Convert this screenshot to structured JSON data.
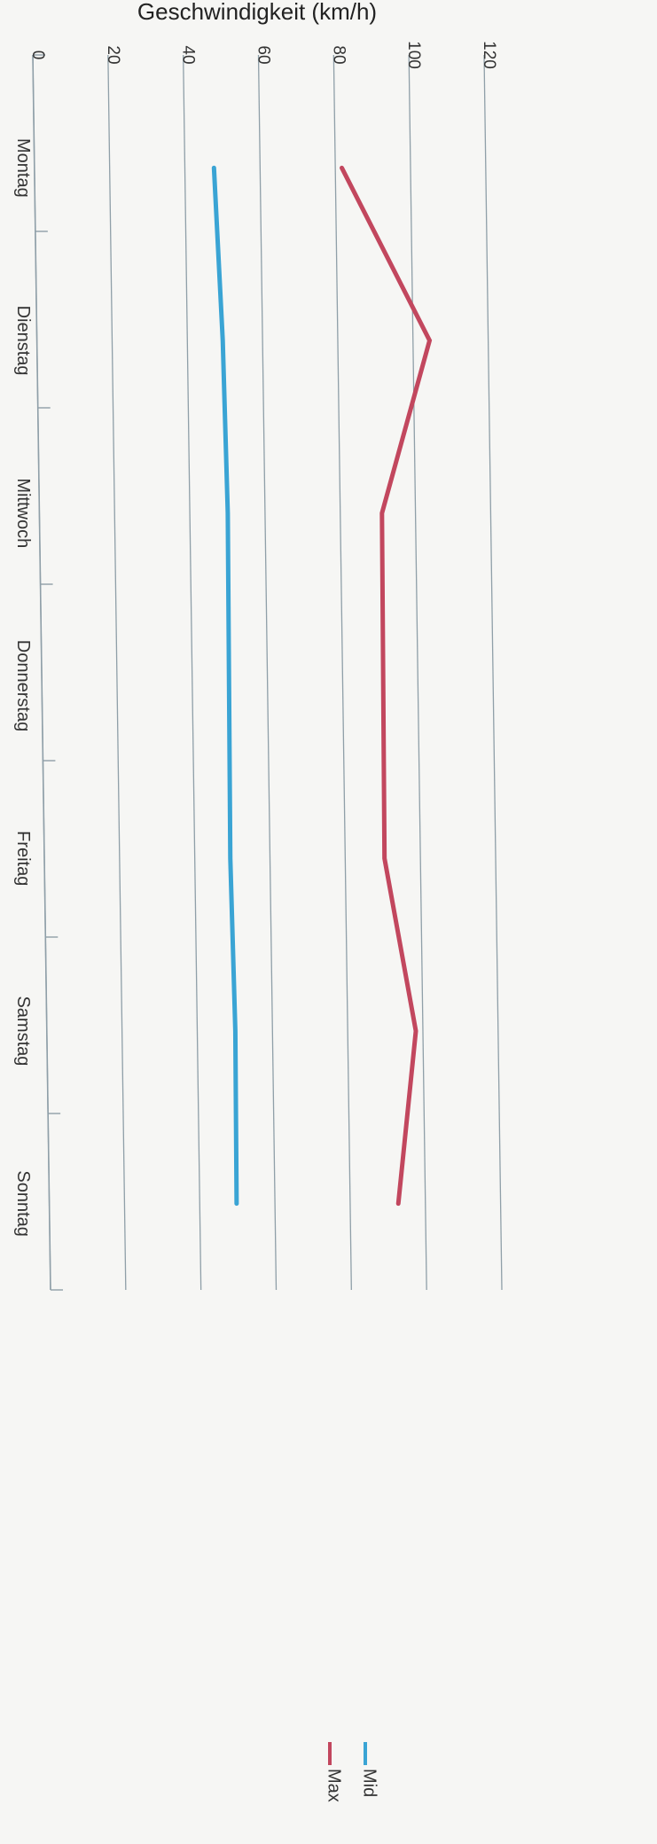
{
  "chart_data": {
    "type": "line",
    "title": "",
    "ylabel": "Geschwindigkeit (km/h)",
    "xlabel": "",
    "categories": [
      "Montag",
      "Dienstag",
      "Mittwoch",
      "Donnerstag",
      "Freitag",
      "Samstag",
      "Sonntag"
    ],
    "series": [
      {
        "name": "Mid",
        "color": "#3aa4d4",
        "values": [
          48,
          50,
          51,
          51,
          51,
          52,
          52
        ]
      },
      {
        "name": "Max",
        "color": "#c2475e",
        "values": [
          82,
          105,
          92,
          92,
          92,
          100,
          95
        ]
      }
    ],
    "ylim": [
      0,
      120
    ],
    "yticks": [
      0,
      20,
      40,
      60,
      80,
      100,
      120
    ],
    "grid": true,
    "legend_position": "bottom",
    "orientation": "rotated-90-clockwise"
  }
}
